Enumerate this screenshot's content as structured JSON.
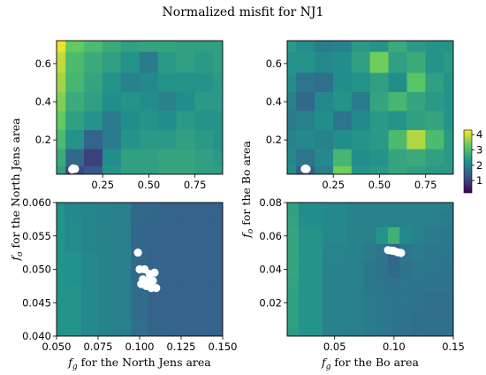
{
  "title": "Normalized misfit for NJ1",
  "colormap": [
    "#440154",
    "#3b528b",
    "#21918c",
    "#5ec962",
    "#fde725"
  ],
  "colorbar": {
    "ticks": [
      "1",
      "2",
      "3",
      "4"
    ],
    "tick_values": [
      1,
      2,
      3,
      4
    ],
    "range": [
      0.2,
      4.3
    ]
  },
  "chart_data": [
    {
      "type": "heatmap",
      "panel": "top-left",
      "xlim": [
        0.0,
        0.9
      ],
      "ylim": [
        0.02,
        0.72
      ],
      "xticks": [
        0.25,
        0.5,
        0.75
      ],
      "xtick_labels": [
        "0.25",
        "0.50",
        "0.75"
      ],
      "yticks": [
        0.2,
        0.4,
        0.6
      ],
      "ytick_labels": [
        "0.2",
        "0.4",
        "0.6"
      ],
      "grid_x": [
        0.0,
        0.1,
        0.2,
        0.3,
        0.4,
        0.5,
        0.6,
        0.7,
        0.8,
        0.9
      ],
      "grid_y": [
        0.72,
        0.6,
        0.5,
        0.4,
        0.3,
        0.2,
        0.1,
        0.02
      ],
      "z": [
        [
          4.2,
          3.3,
          3.0,
          2.7,
          2.5,
          2.6,
          2.6,
          2.5,
          2.5,
          2.5
        ],
        [
          3.9,
          3.0,
          2.7,
          2.5,
          2.3,
          1.9,
          2.4,
          2.5,
          2.4,
          2.5
        ],
        [
          3.7,
          2.9,
          2.6,
          2.3,
          2.0,
          2.1,
          2.3,
          2.3,
          2.3,
          2.4
        ],
        [
          3.5,
          2.7,
          2.5,
          2.2,
          2.3,
          2.2,
          2.0,
          2.2,
          2.4,
          2.4
        ],
        [
          3.3,
          2.5,
          2.3,
          1.9,
          2.2,
          2.3,
          2.2,
          2.4,
          2.3,
          2.3
        ],
        [
          3.0,
          2.3,
          1.5,
          1.9,
          2.3,
          2.4,
          2.4,
          2.5,
          2.4,
          2.3
        ],
        [
          2.7,
          1.6,
          1.0,
          2.2,
          2.5,
          2.5,
          2.6,
          2.6,
          2.5,
          2.4
        ],
        [
          2.5,
          1.1,
          1.3,
          2.3,
          2.5,
          2.5,
          2.6,
          2.6,
          2.5,
          2.5
        ]
      ],
      "points": [
        [
          0.09,
          0.05
        ],
        [
          0.1,
          0.048
        ],
        [
          0.085,
          0.045
        ]
      ]
    },
    {
      "type": "heatmap",
      "panel": "top-right",
      "xlim": [
        0.0,
        0.9
      ],
      "ylim": [
        0.02,
        0.72
      ],
      "xticks": [
        0.25,
        0.5,
        0.75
      ],
      "xtick_labels": [
        "0.25",
        "0.50",
        "0.75"
      ],
      "yticks": [
        0.2,
        0.4,
        0.6
      ],
      "ytick_labels": [
        "0.2",
        "0.4",
        "0.6"
      ],
      "grid_x": [
        0.0,
        0.1,
        0.2,
        0.3,
        0.4,
        0.5,
        0.6,
        0.7,
        0.8,
        0.9
      ],
      "grid_y": [
        0.72,
        0.6,
        0.5,
        0.4,
        0.3,
        0.2,
        0.1,
        0.02
      ],
      "z": [
        [
          2.4,
          2.2,
          1.9,
          2.0,
          2.4,
          2.3,
          2.7,
          2.4,
          2.3,
          2.3
        ],
        [
          2.3,
          2.3,
          2.1,
          2.2,
          2.5,
          3.4,
          2.5,
          2.7,
          2.3,
          2.4
        ],
        [
          2.2,
          1.8,
          1.7,
          2.2,
          2.3,
          2.5,
          2.2,
          3.2,
          2.5,
          2.3
        ],
        [
          2.0,
          1.6,
          2.1,
          2.3,
          1.9,
          2.6,
          2.9,
          2.6,
          2.4,
          2.3
        ],
        [
          1.9,
          2.0,
          2.2,
          1.8,
          2.1,
          2.4,
          2.3,
          2.5,
          2.6,
          2.3
        ],
        [
          2.0,
          2.1,
          2.0,
          2.2,
          2.3,
          2.4,
          3.0,
          3.8,
          3.0,
          2.4
        ],
        [
          2.1,
          1.8,
          2.1,
          2.9,
          2.2,
          2.3,
          2.6,
          2.7,
          2.5,
          2.4
        ],
        [
          2.2,
          1.4,
          2.0,
          3.4,
          2.3,
          2.4,
          2.6,
          2.5,
          2.4,
          2.4
        ]
      ],
      "points": [
        [
          0.1,
          0.05
        ],
        [
          0.095,
          0.048
        ],
        [
          0.105,
          0.047
        ]
      ]
    },
    {
      "type": "heatmap",
      "panel": "bottom-left",
      "xlim": [
        0.05,
        0.15
      ],
      "ylim": [
        0.04,
        0.06
      ],
      "xticks": [
        0.05,
        0.075,
        0.1,
        0.125,
        0.15
      ],
      "xtick_labels": [
        "0.050",
        "0.075",
        "0.100",
        "0.125",
        "0.150"
      ],
      "yticks": [
        0.04,
        0.045,
        0.05,
        0.055,
        0.06
      ],
      "ytick_labels": [
        "0.040",
        "0.045",
        "0.050",
        "0.055",
        "0.060"
      ],
      "xlabel": "for the North Jens area",
      "xlabel_var": "g",
      "ylabel": "for the North Jens area",
      "ylabel_var": "o",
      "grid_x": [
        0.05,
        0.06,
        0.07,
        0.08,
        0.09,
        0.1,
        0.11,
        0.12,
        0.13,
        0.14,
        0.15
      ],
      "grid_y": [
        0.06,
        0.055,
        0.05,
        0.045,
        0.04
      ],
      "z": [
        [
          2.28,
          2.1,
          2.05,
          2.0,
          1.95,
          1.6,
          1.55,
          1.5,
          1.5,
          1.5,
          1.5
        ],
        [
          2.3,
          2.15,
          2.05,
          2.0,
          1.95,
          1.55,
          1.52,
          1.5,
          1.5,
          1.5,
          1.5
        ],
        [
          2.3,
          2.25,
          2.1,
          2.0,
          1.95,
          1.6,
          1.5,
          1.5,
          1.5,
          1.5,
          1.5
        ],
        [
          2.3,
          2.3,
          2.1,
          2.0,
          1.95,
          1.65,
          1.52,
          1.5,
          1.5,
          1.5,
          1.5
        ],
        [
          2.3,
          2.3,
          2.1,
          2.0,
          1.95,
          1.7,
          1.55,
          1.5,
          1.5,
          1.5,
          1.5
        ]
      ],
      "points": [
        [
          0.099,
          0.0525
        ],
        [
          0.1,
          0.05
        ],
        [
          0.103,
          0.05
        ],
        [
          0.106,
          0.0493
        ],
        [
          0.109,
          0.0495
        ],
        [
          0.102,
          0.0485
        ],
        [
          0.105,
          0.0483
        ],
        [
          0.108,
          0.0483
        ],
        [
          0.101,
          0.0478
        ],
        [
          0.104,
          0.0475
        ],
        [
          0.11,
          0.0472
        ],
        [
          0.107,
          0.0472
        ]
      ]
    },
    {
      "type": "heatmap",
      "panel": "bottom-right",
      "xlim": [
        0.01,
        0.15
      ],
      "ylim": [
        0.0,
        0.08
      ],
      "xticks": [
        0.05,
        0.1,
        0.15
      ],
      "xtick_labels": [
        "0.05",
        "0.10",
        "0.15"
      ],
      "yticks": [
        0.02,
        0.04,
        0.06,
        0.08
      ],
      "ytick_labels": [
        "0.02",
        "0.04",
        "0.06",
        "0.08"
      ],
      "xlabel": "for the Bo area",
      "xlabel_var": "g",
      "ylabel": "for the Bo area",
      "ylabel_var": "o",
      "grid_x": [
        0.01,
        0.03,
        0.05,
        0.07,
        0.08,
        0.09,
        0.1,
        0.11,
        0.12,
        0.13,
        0.15
      ],
      "grid_y": [
        0.08,
        0.07,
        0.06,
        0.05,
        0.04,
        0.03,
        0.02,
        0.01,
        0.0
      ],
      "z": [
        [
          2.5,
          2.2,
          2.1,
          2.0,
          2.0,
          2.0,
          2.0,
          2.0,
          2.0,
          2.0,
          1.95
        ],
        [
          2.55,
          2.2,
          2.1,
          2.0,
          2.0,
          2.0,
          2.0,
          2.0,
          2.0,
          1.95,
          1.9
        ],
        [
          2.6,
          2.3,
          2.1,
          2.0,
          2.0,
          2.3,
          2.8,
          2.1,
          2.0,
          1.9,
          1.85
        ],
        [
          2.6,
          2.3,
          2.05,
          2.0,
          1.9,
          1.8,
          1.5,
          1.8,
          1.9,
          1.85,
          1.8
        ],
        [
          2.6,
          2.3,
          2.0,
          1.95,
          1.85,
          1.75,
          1.6,
          1.75,
          1.85,
          1.8,
          1.75
        ],
        [
          2.55,
          2.3,
          2.0,
          1.95,
          1.85,
          1.8,
          1.75,
          1.8,
          1.8,
          1.75,
          1.75
        ],
        [
          2.5,
          2.3,
          2.0,
          1.95,
          1.9,
          1.85,
          1.8,
          1.8,
          1.75,
          1.7,
          1.7
        ],
        [
          2.5,
          2.3,
          2.0,
          1.95,
          1.9,
          1.85,
          1.8,
          1.75,
          1.7,
          1.7,
          1.7
        ],
        [
          2.45,
          2.3,
          2.0,
          1.95,
          1.9,
          1.85,
          1.8,
          1.75,
          1.7,
          1.7,
          1.7
        ]
      ],
      "points": [
        [
          0.095,
          0.0515
        ],
        [
          0.098,
          0.0512
        ],
        [
          0.1,
          0.051
        ],
        [
          0.103,
          0.0502
        ],
        [
          0.106,
          0.0498
        ]
      ]
    }
  ]
}
